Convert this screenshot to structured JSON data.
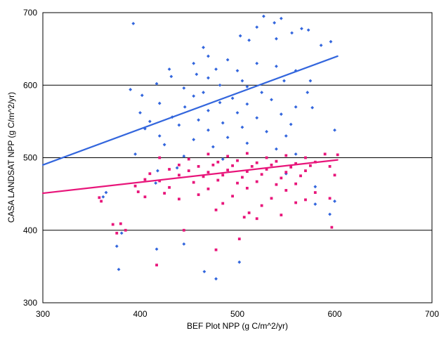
{
  "chart_data": {
    "type": "scatter",
    "title": "",
    "xlabel": "BEF Plot NPP  (g C/m^2/yr)",
    "ylabel": "CASA  LANDSAT NPP  (g C/m^2/yr)",
    "xlim": [
      300,
      700
    ],
    "ylim": [
      300,
      700
    ],
    "x_ticks": [
      300,
      400,
      500,
      600,
      700
    ],
    "y_ticks": [
      300,
      400,
      500,
      600,
      700
    ],
    "grid": "horizontal",
    "legend": "none",
    "series": [
      {
        "marker": "diamond",
        "color": "#3366dd",
        "trendline": {
          "x": [
            300,
            603
          ],
          "y": [
            490,
            640
          ]
        },
        "points": [
          [
            393,
            685
          ],
          [
            527,
            695
          ],
          [
            545,
            692
          ],
          [
            538,
            686
          ],
          [
            520,
            680
          ],
          [
            566,
            678
          ],
          [
            573,
            676
          ],
          [
            556,
            672
          ],
          [
            503,
            668
          ],
          [
            540,
            664
          ],
          [
            512,
            662
          ],
          [
            596,
            660
          ],
          [
            586,
            655
          ],
          [
            465,
            652
          ],
          [
            470,
            640
          ],
          [
            490,
            635
          ],
          [
            455,
            630
          ],
          [
            520,
            630
          ],
          [
            540,
            626
          ],
          [
            478,
            622
          ],
          [
            430,
            622
          ],
          [
            500,
            620
          ],
          [
            560,
            620
          ],
          [
            458,
            615
          ],
          [
            432,
            612
          ],
          [
            470,
            610
          ],
          [
            505,
            606
          ],
          [
            548,
            606
          ],
          [
            575,
            606
          ],
          [
            417,
            602
          ],
          [
            482,
            600
          ],
          [
            510,
            598
          ],
          [
            445,
            596
          ],
          [
            390,
            594
          ],
          [
            465,
            590
          ],
          [
            525,
            590
          ],
          [
            572,
            590
          ],
          [
            402,
            586
          ],
          [
            455,
            585
          ],
          [
            495,
            582
          ],
          [
            535,
            580
          ],
          [
            482,
            576
          ],
          [
            420,
            575
          ],
          [
            510,
            574
          ],
          [
            446,
            570
          ],
          [
            560,
            570
          ],
          [
            577,
            569
          ],
          [
            470,
            565
          ],
          [
            400,
            562
          ],
          [
            500,
            562
          ],
          [
            545,
            560
          ],
          [
            433,
            556
          ],
          [
            520,
            555
          ],
          [
            460,
            552
          ],
          [
            410,
            550
          ],
          [
            485,
            548
          ],
          [
            555,
            546
          ],
          [
            440,
            545
          ],
          [
            505,
            542
          ],
          [
            405,
            540
          ],
          [
            470,
            538
          ],
          [
            530,
            536
          ],
          [
            600,
            538
          ],
          [
            420,
            530
          ],
          [
            550,
            530
          ],
          [
            490,
            528
          ],
          [
            455,
            525
          ],
          [
            510,
            520
          ],
          [
            425,
            518
          ],
          [
            475,
            515
          ],
          [
            540,
            512
          ],
          [
            395,
            505
          ],
          [
            560,
            505
          ],
          [
            445,
            502
          ],
          [
            485,
            498
          ],
          [
            438,
            486
          ],
          [
            418,
            482
          ],
          [
            550,
            478
          ],
          [
            580,
            460
          ],
          [
            600,
            440
          ],
          [
            416,
            465
          ],
          [
            365,
            452
          ],
          [
            362,
            446
          ],
          [
            381,
            396
          ],
          [
            376,
            378
          ],
          [
            378,
            346
          ],
          [
            417,
            374
          ],
          [
            445,
            381
          ],
          [
            466,
            343
          ],
          [
            478,
            333
          ],
          [
            502,
            356
          ],
          [
            580,
            436
          ],
          [
            595,
            422
          ]
        ]
      },
      {
        "marker": "square",
        "color": "#e8157a",
        "trendline": {
          "x": [
            300,
            603
          ],
          "y": [
            451,
            497
          ]
        },
        "points": [
          [
            420,
            500
          ],
          [
            450,
            498
          ],
          [
            470,
            505
          ],
          [
            490,
            502
          ],
          [
            510,
            506
          ],
          [
            530,
            500
          ],
          [
            550,
            503
          ],
          [
            570,
            500
          ],
          [
            590,
            505
          ],
          [
            603,
            504
          ],
          [
            480,
            494
          ],
          [
            500,
            496
          ],
          [
            520,
            493
          ],
          [
            540,
            495
          ],
          [
            560,
            492
          ],
          [
            580,
            494
          ],
          [
            440,
            490
          ],
          [
            460,
            488
          ],
          [
            475,
            490
          ],
          [
            495,
            489
          ],
          [
            515,
            488
          ],
          [
            535,
            490
          ],
          [
            555,
            487
          ],
          [
            575,
            489
          ],
          [
            595,
            488
          ],
          [
            430,
            484
          ],
          [
            450,
            482
          ],
          [
            470,
            480
          ],
          [
            490,
            483
          ],
          [
            510,
            481
          ],
          [
            530,
            484
          ],
          [
            550,
            480
          ],
          [
            570,
            482
          ],
          [
            410,
            478
          ],
          [
            440,
            476
          ],
          [
            465,
            474
          ],
          [
            485,
            476
          ],
          [
            505,
            473
          ],
          [
            525,
            477
          ],
          [
            545,
            472
          ],
          [
            565,
            475
          ],
          [
            600,
            476
          ],
          [
            405,
            470
          ],
          [
            420,
            468
          ],
          [
            455,
            466
          ],
          [
            480,
            469
          ],
          [
            500,
            465
          ],
          [
            520,
            467
          ],
          [
            540,
            463
          ],
          [
            560,
            464
          ],
          [
            395,
            461
          ],
          [
            430,
            459
          ],
          [
            470,
            457
          ],
          [
            510,
            458
          ],
          [
            550,
            455
          ],
          [
            580,
            452
          ],
          [
            398,
            453
          ],
          [
            425,
            451
          ],
          [
            460,
            449
          ],
          [
            495,
            447
          ],
          [
            535,
            444
          ],
          [
            570,
            442
          ],
          [
            405,
            446
          ],
          [
            440,
            443
          ],
          [
            485,
            437
          ],
          [
            525,
            434
          ],
          [
            560,
            438
          ],
          [
            595,
            444
          ],
          [
            478,
            428
          ],
          [
            512,
            424
          ],
          [
            545,
            421
          ],
          [
            507,
            418
          ],
          [
            520,
            416
          ],
          [
            360,
            440
          ],
          [
            358,
            445
          ],
          [
            372,
            408
          ],
          [
            380,
            409
          ],
          [
            385,
            400
          ],
          [
            376,
            396
          ],
          [
            445,
            400
          ],
          [
            478,
            373
          ],
          [
            502,
            388
          ],
          [
            417,
            352
          ],
          [
            597,
            404
          ]
        ]
      }
    ]
  }
}
